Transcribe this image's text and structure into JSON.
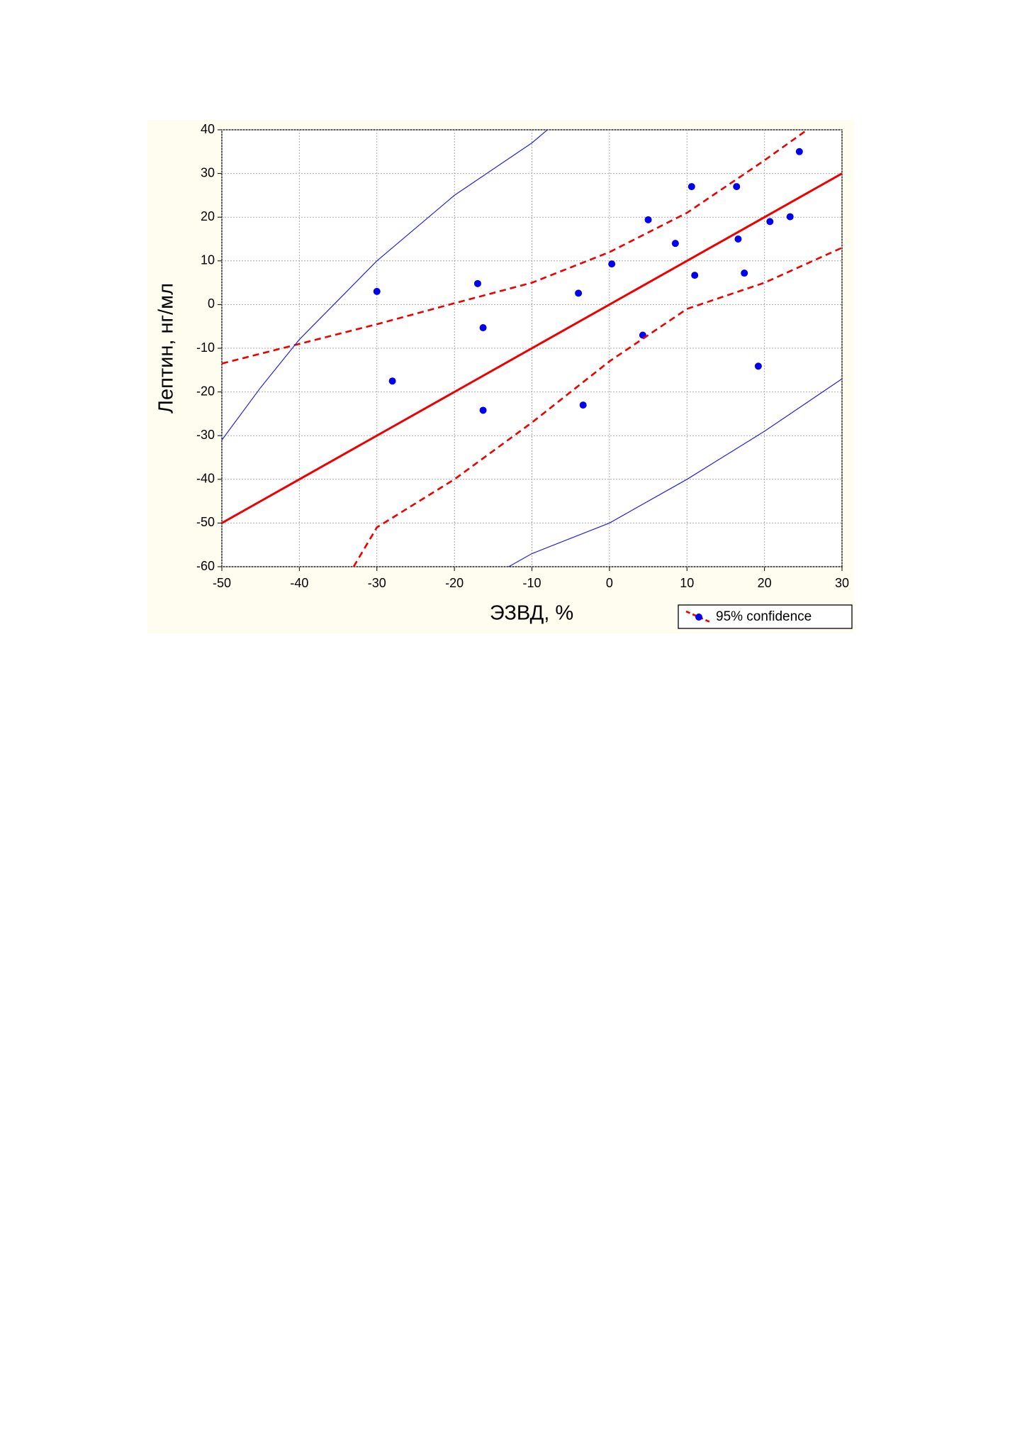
{
  "chart_data": {
    "type": "scatter",
    "x_label": "ЭЗВД, %",
    "y_label": "Лептин, нг/мл",
    "xlim": [
      -50,
      30
    ],
    "ylim": [
      -60,
      40
    ],
    "xticks": [
      -50,
      -40,
      -30,
      -20,
      -10,
      0,
      10,
      20,
      30
    ],
    "yticks": [
      -60,
      -50,
      -40,
      -30,
      -20,
      -10,
      0,
      10,
      20,
      30,
      40
    ],
    "grid": true,
    "legend": "bottom-right",
    "series": [
      {
        "style": "points",
        "color": "#0000ee",
        "x": [
          -30,
          -28,
          -17,
          -16.3,
          -16.3,
          -4,
          -3.4,
          0.3,
          4.3,
          5,
          8.5,
          10.6,
          11,
          16.4,
          16.6,
          17.4,
          19.2,
          20.7,
          23.3,
          24.5
        ],
        "values": [
          3,
          -17.5,
          4.8,
          -5.3,
          -24.2,
          2.6,
          -23,
          9.3,
          -7,
          19.4,
          14,
          27,
          6.7,
          27,
          15,
          7.2,
          -14.1,
          19,
          20.1,
          35
        ]
      },
      {
        "style": "solid",
        "color": "#ee0000",
        "x": [
          -50,
          30
        ],
        "values": [
          -50,
          30
        ]
      },
      {
        "name": "95% confidence",
        "style": "dashed",
        "color": "#ee0000",
        "x": [
          -50,
          -40,
          -30,
          -20,
          -10,
          0,
          10,
          20,
          25.5
        ],
        "values": [
          -13.5,
          -9,
          -4.5,
          0.3,
          5,
          12,
          21,
          33,
          40
        ]
      },
      {
        "style": "dashed",
        "color": "#ee0000",
        "x": [
          -33,
          -30,
          -20,
          -10,
          0,
          10,
          20,
          30
        ],
        "values": [
          -60,
          -51,
          -40,
          -27,
          -13,
          -1,
          5,
          13
        ]
      },
      {
        "style": "thin",
        "color": "#2222dd",
        "x": [
          -50,
          -45,
          -40,
          -30,
          -20,
          -10,
          -8
        ],
        "values": [
          -31,
          -19,
          -8,
          10,
          25,
          37,
          40
        ]
      },
      {
        "style": "thin",
        "color": "#2222dd",
        "x": [
          -13,
          -10,
          0,
          10,
          20,
          30
        ],
        "values": [
          -60,
          -57,
          -50,
          -40,
          -29,
          -17
        ]
      }
    ]
  }
}
